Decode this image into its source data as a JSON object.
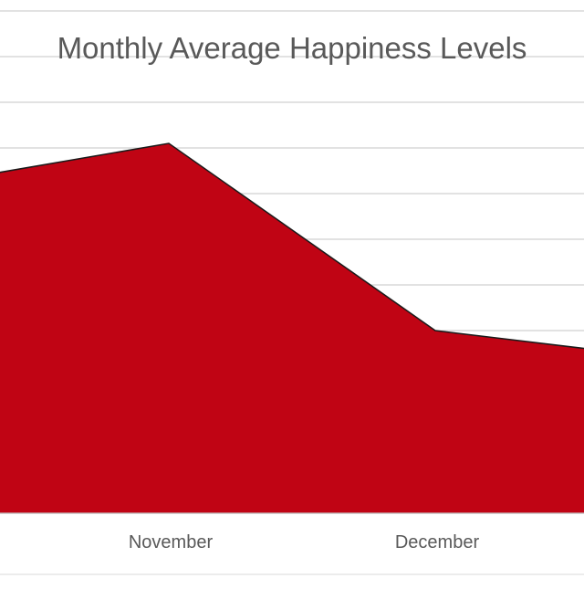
{
  "chart_data": {
    "type": "area",
    "title": "Monthly Average Happiness Levels",
    "categories": [
      "",
      "November",
      "December",
      ""
    ],
    "series": [
      {
        "values": [
          7.1,
          8.1,
          4.0,
          3.3
        ]
      }
    ],
    "ylim": [
      0,
      11
    ],
    "grid": true,
    "legend": "none",
    "fill_color": "#c00414",
    "line_color": "#1a1a1a",
    "grid_color": "#d0d0d0",
    "text_color": "#595959"
  }
}
